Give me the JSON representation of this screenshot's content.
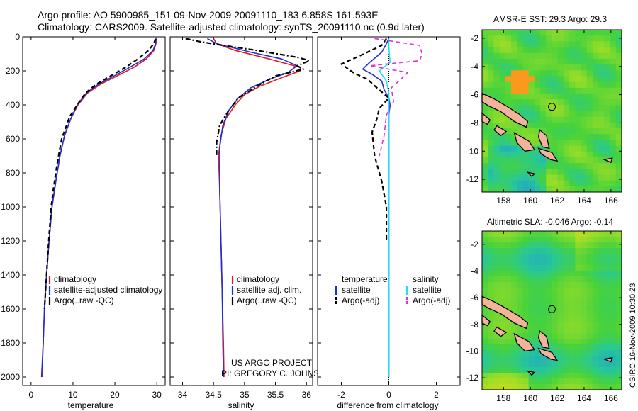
{
  "header": {
    "line1": "Argo profile: AO 5900985_151 09-Nov-2009 20091110_183 6.858S 161.593E",
    "line2": "Climatology: CARS2009. Satellite-adjusted climatology: synTS_20091110.nc (0.9d later)"
  },
  "side_label": "CSIRO 16-Nov-2009 10:30:23",
  "credit": {
    "line1": "US ARGO PROJECT",
    "line2": "PI: GREGORY C. JOHNSON"
  },
  "colors": {
    "climatology": "#e31a1c",
    "satellite": "#1f2fd6",
    "argo": "#000000",
    "sat_salinity": "#22e0f0",
    "argo_salinity_diff": "#e030d8"
  },
  "chart_data": [
    {
      "type": "line",
      "id": "temperature",
      "xlabel": "temperature",
      "ylabel": "",
      "xlim": [
        -2,
        32
      ],
      "ylim": [
        2050,
        0
      ],
      "xticks": [
        "0",
        "10",
        "20",
        "30"
      ],
      "xtick_values": [
        0,
        10,
        20,
        30
      ],
      "yticks": [
        "0",
        "200",
        "400",
        "600",
        "800",
        "1000",
        "1200",
        "1400",
        "1600",
        "1800",
        "2000"
      ],
      "ytick_values": [
        0,
        200,
        400,
        600,
        800,
        1000,
        1200,
        1400,
        1600,
        1800,
        2000
      ],
      "legend": [
        "climatology",
        "satellite-adjusted climatology",
        "Argo(..raw -QC)"
      ],
      "legend_placement": "lower-right",
      "series": [
        {
          "name": "climatology",
          "color": "climatology",
          "dash": "solid",
          "points": [
            [
              29.9,
              10
            ],
            [
              29.8,
              40
            ],
            [
              29.3,
              80
            ],
            [
              27.5,
              130
            ],
            [
              24.5,
              180
            ],
            [
              20.5,
              230
            ],
            [
              16.5,
              280
            ],
            [
              13.5,
              330
            ],
            [
              11.2,
              400
            ],
            [
              9.5,
              480
            ],
            [
              8,
              580
            ],
            [
              6.9,
              700
            ],
            [
              5.9,
              850
            ],
            [
              5,
              1000
            ],
            [
              4.3,
              1200
            ],
            [
              3.7,
              1400
            ],
            [
              3.2,
              1600
            ],
            [
              2.9,
              1800
            ],
            [
              2.6,
              2000
            ]
          ]
        },
        {
          "name": "satellite-adjusted climatology",
          "color": "satellite",
          "dash": "solid",
          "points": [
            [
              29.8,
              10
            ],
            [
              29.7,
              40
            ],
            [
              29.1,
              80
            ],
            [
              27,
              130
            ],
            [
              23.5,
              180
            ],
            [
              19.8,
              230
            ],
            [
              16,
              280
            ],
            [
              13.2,
              330
            ],
            [
              11,
              400
            ],
            [
              9.5,
              480
            ],
            [
              8,
              580
            ],
            [
              6.9,
              700
            ],
            [
              5.9,
              850
            ],
            [
              5,
              1000
            ],
            [
              4.3,
              1200
            ],
            [
              3.7,
              1400
            ],
            [
              3.2,
              1600
            ],
            [
              2.9,
              1800
            ],
            [
              2.5,
              2000
            ]
          ]
        },
        {
          "name": "Argo(..raw -QC)",
          "color": "argo",
          "dash": "dash",
          "points": [
            [
              29.7,
              10
            ],
            [
              29.3,
              40
            ],
            [
              28,
              80
            ],
            [
              25.5,
              130
            ],
            [
              22.5,
              180
            ],
            [
              19,
              230
            ],
            [
              15.5,
              280
            ],
            [
              13,
              330
            ],
            [
              11,
              400
            ],
            [
              9.2,
              470
            ],
            [
              7.3,
              600
            ],
            [
              6.2,
              750
            ],
            [
              5.3,
              900
            ],
            [
              4.8,
              1000
            ],
            [
              4.2,
              1200
            ],
            [
              3.7,
              1400
            ],
            [
              3.2,
              1600
            ]
          ]
        }
      ]
    },
    {
      "type": "line",
      "id": "salinity",
      "xlabel": "salinity",
      "ylabel": "",
      "xlim": [
        33.8,
        36.1
      ],
      "ylim": [
        2050,
        0
      ],
      "xticks": [
        "34",
        "34.5",
        "35",
        "35.5",
        "36"
      ],
      "xtick_values": [
        34,
        34.5,
        35,
        35.5,
        36
      ],
      "legend": [
        "climatology",
        "satellite adj. clim.",
        "Argo(..raw -QC)"
      ],
      "legend_placement": "lower-right",
      "series": [
        {
          "name": "climatology",
          "color": "climatology",
          "dash": "solid",
          "points": [
            [
              34.5,
              10
            ],
            [
              34.55,
              40
            ],
            [
              34.85,
              80
            ],
            [
              35.4,
              130
            ],
            [
              35.9,
              180
            ],
            [
              35.9,
              200
            ],
            [
              35.6,
              240
            ],
            [
              35.25,
              290
            ],
            [
              35,
              340
            ],
            [
              34.85,
              400
            ],
            [
              34.7,
              480
            ],
            [
              34.62,
              580
            ],
            [
              34.58,
              700
            ],
            [
              34.6,
              900
            ],
            [
              34.62,
              1200
            ],
            [
              34.64,
              1500
            ],
            [
              34.66,
              1800
            ],
            [
              34.67,
              2000
            ]
          ]
        },
        {
          "name": "satellite adj. clim.",
          "color": "satellite",
          "dash": "solid",
          "points": [
            [
              34.4,
              10
            ],
            [
              34.55,
              40
            ],
            [
              35.1,
              90
            ],
            [
              35.6,
              130
            ],
            [
              35.85,
              170
            ],
            [
              35.7,
              210
            ],
            [
              35.4,
              250
            ],
            [
              35.1,
              300
            ],
            [
              34.9,
              360
            ],
            [
              34.75,
              430
            ],
            [
              34.65,
              520
            ],
            [
              34.6,
              650
            ],
            [
              34.6,
              900
            ],
            [
              34.62,
              1200
            ],
            [
              34.64,
              1500
            ],
            [
              34.65,
              1800
            ],
            [
              34.66,
              2000
            ]
          ]
        },
        {
          "name": "Argo(..raw -QC)",
          "color": "argo",
          "dash": "dashdot",
          "points": [
            [
              34.05,
              10
            ],
            [
              34.3,
              30
            ],
            [
              35.2,
              80
            ],
            [
              35.85,
              120
            ],
            [
              36.05,
              140
            ],
            [
              35.85,
              170
            ],
            [
              35.95,
              190
            ],
            [
              35.5,
              230
            ],
            [
              35.2,
              290
            ],
            [
              34.9,
              360
            ],
            [
              34.75,
              430
            ],
            [
              34.6,
              520
            ],
            [
              34.55,
              620
            ],
            [
              34.55,
              700
            ]
          ]
        }
      ]
    },
    {
      "type": "line",
      "id": "difference",
      "xlabel": "difference from climatology",
      "ylabel": "",
      "xlim": [
        -3,
        3
      ],
      "ylim": [
        2050,
        0
      ],
      "xticks": [
        "-2",
        "0",
        "2"
      ],
      "xtick_values": [
        -2,
        0,
        2
      ],
      "reference_line_x": 0,
      "legend_headers": [
        "temperature",
        "salinity"
      ],
      "legend": [
        "satellite",
        "Argo(-adj)",
        "satellite",
        "Argo(-adj)"
      ],
      "legend_placement": "lower-center",
      "series": [
        {
          "name": "satellite",
          "group": "temperature",
          "color": "satellite",
          "dash": "solid",
          "points": [
            [
              0,
              10
            ],
            [
              -0.1,
              40
            ],
            [
              -0.3,
              90
            ],
            [
              -0.8,
              150
            ],
            [
              -1.1,
              190
            ],
            [
              -0.7,
              220
            ],
            [
              -0.3,
              260
            ],
            [
              -0.2,
              310
            ],
            [
              0,
              360
            ],
            [
              0.05,
              400
            ],
            [
              0,
              460
            ],
            [
              0,
              600
            ],
            [
              0,
              900
            ],
            [
              0,
              1200
            ],
            [
              0,
              1500
            ],
            [
              0,
              1700
            ],
            [
              0,
              2000
            ]
          ]
        },
        {
          "name": "Argo(-adj)",
          "group": "temperature",
          "color": "argo",
          "dash": "dash",
          "points": [
            [
              -0.1,
              10
            ],
            [
              -0.3,
              50
            ],
            [
              -1.2,
              110
            ],
            [
              -2,
              160
            ],
            [
              -1.5,
              210
            ],
            [
              -0.9,
              250
            ],
            [
              -0.5,
              300
            ],
            [
              0,
              360
            ],
            [
              -0.4,
              420
            ],
            [
              -0.5,
              480
            ],
            [
              -0.7,
              560
            ],
            [
              -0.6,
              700
            ],
            [
              -0.3,
              850
            ],
            [
              -0.1,
              1000
            ],
            [
              -0.1,
              1200
            ]
          ]
        },
        {
          "name": "satellite",
          "group": "salinity",
          "color": "sat_salinity",
          "dash": "solid",
          "points": [
            [
              0,
              10
            ],
            [
              0,
              60
            ],
            [
              0.05,
              150
            ],
            [
              -0.4,
              200
            ],
            [
              -0.1,
              260
            ],
            [
              0,
              330
            ],
            [
              0,
              420
            ],
            [
              0,
              600
            ],
            [
              0,
              900
            ],
            [
              0,
              1200
            ],
            [
              0,
              1500
            ],
            [
              0,
              1800
            ],
            [
              0,
              2000
            ]
          ]
        },
        {
          "name": "Argo(-adj)",
          "group": "salinity",
          "color": "argo_salinity_diff",
          "dash": "dash",
          "points": [
            [
              -0.6,
              10
            ],
            [
              1.3,
              50
            ],
            [
              1.4,
              100
            ],
            [
              1.3,
              140
            ],
            [
              -0.8,
              170
            ],
            [
              0.8,
              210
            ],
            [
              0.5,
              250
            ],
            [
              0.1,
              300
            ],
            [
              0.2,
              380
            ],
            [
              -0.1,
              460
            ],
            [
              -0.2,
              580
            ],
            [
              -0.4,
              700
            ]
          ]
        }
      ]
    }
  ],
  "maps": [
    {
      "title": "AMSR-E SST: 29.3 Argo: 29.3",
      "xlim": [
        156.4,
        166.8
      ],
      "ylim": [
        -12.9,
        -1.4
      ],
      "xticks": [
        "158",
        "160",
        "162",
        "164",
        "166"
      ],
      "yticks": [
        "-2",
        "-4",
        "-6",
        "-8",
        "-10",
        "-12"
      ],
      "argo_position": [
        161.6,
        -6.86
      ],
      "field": "sst"
    },
    {
      "title": "Altimetric SLA: -0.046 Argo: -0.14",
      "xlim": [
        156.4,
        166.8
      ],
      "ylim": [
        -12.9,
        -1.0
      ],
      "xticks": [
        "158",
        "160",
        "162",
        "164",
        "166"
      ],
      "yticks": [
        "-2",
        "-4",
        "-6",
        "-8",
        "-10",
        "-12"
      ],
      "argo_position": [
        161.6,
        -6.86
      ],
      "field": "sla"
    }
  ]
}
